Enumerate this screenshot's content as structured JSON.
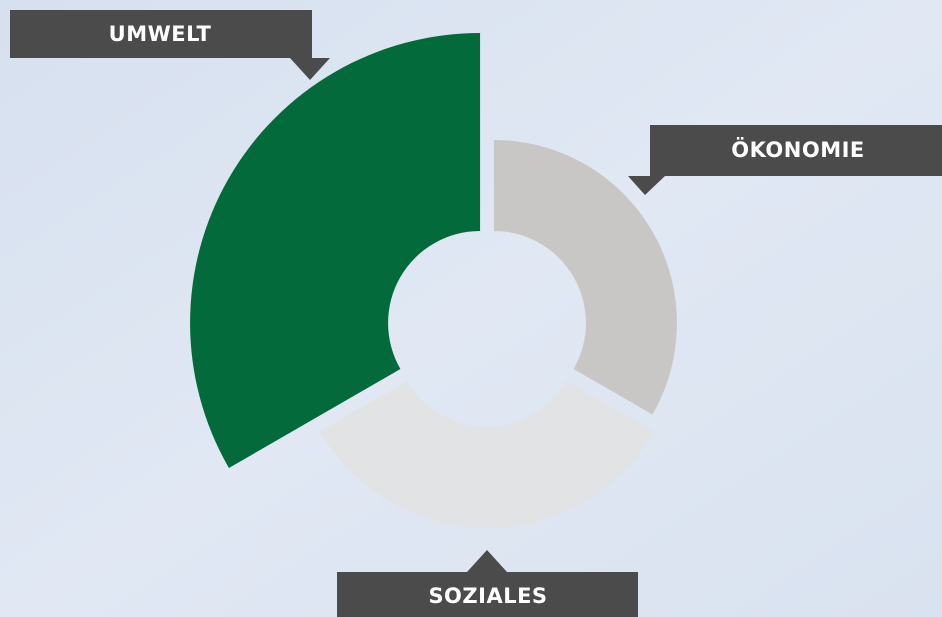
{
  "segments": [
    {
      "label": "UMWELT"
    },
    {
      "label": "ÖKONOMIE"
    },
    {
      "label": "SOZIALES"
    }
  ]
}
